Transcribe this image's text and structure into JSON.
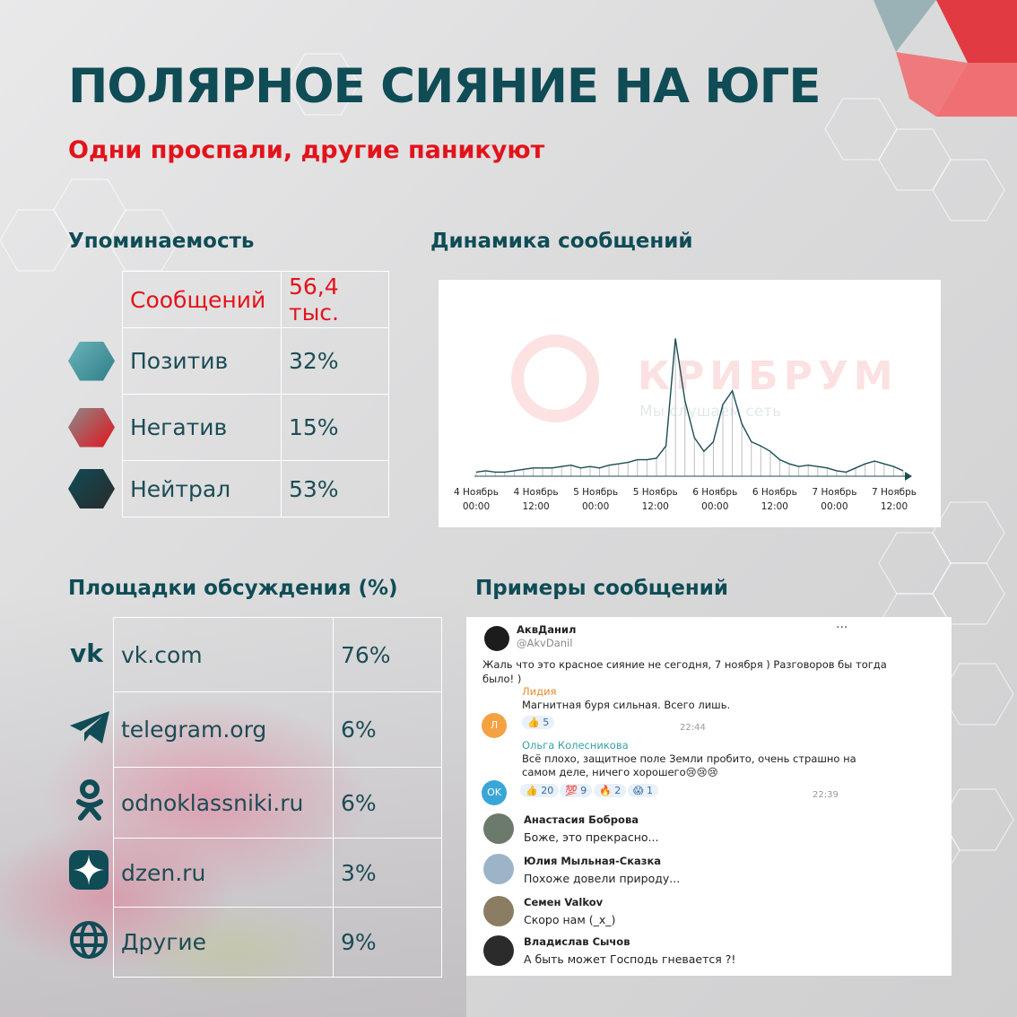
{
  "header": {
    "title": "ПОЛЯРНОЕ СИЯНИЕ НА ЮГЕ",
    "subtitle": "Одни проспали, другие паникуют"
  },
  "sections": {
    "mentions": "Упоминаемость",
    "dynamics": "Динамика сообщений",
    "platforms": "Площадки обсуждения (%)",
    "examples": "Примеры сообщений"
  },
  "mentions": {
    "messages_label": "Сообщений",
    "messages_value": "56,4 тыс.",
    "rows": [
      {
        "label": "Позитив",
        "value": "32%",
        "color_from": "#5aa7ae",
        "color_to": "#2f7d88"
      },
      {
        "label": "Негатив",
        "value": "15%",
        "color_from": "#8a8a8a",
        "color_to": "#e3131b"
      },
      {
        "label": "Нейтрал",
        "value": "53%",
        "color_from": "#0f4c56",
        "color_to": "#2a2a2a"
      }
    ]
  },
  "platforms": [
    {
      "label": "vk.com",
      "value": "76%",
      "icon": "vk-icon"
    },
    {
      "label": "telegram.org",
      "value": "6%",
      "icon": "telegram-icon"
    },
    {
      "label": "odnoklassniki.ru",
      "value": "6%",
      "icon": "odnoklassniki-icon"
    },
    {
      "label": "dzen.ru",
      "value": "3%",
      "icon": "dzen-icon"
    },
    {
      "label": "Другие",
      "value": "9%",
      "icon": "globe-icon"
    }
  ],
  "chart_data": {
    "type": "area",
    "title": "",
    "x_ticks": [
      [
        "4 Ноябрь",
        "00:00"
      ],
      [
        "4 Ноябрь",
        "12:00"
      ],
      [
        "5 Ноябрь",
        "00:00"
      ],
      [
        "5 Ноябрь",
        "12:00"
      ],
      [
        "6 Ноябрь",
        "00:00"
      ],
      [
        "6 Ноябрь",
        "12:00"
      ],
      [
        "7 Ноябрь",
        "00:00"
      ],
      [
        "7 Ноябрь",
        "12:00"
      ]
    ],
    "x_hours": [
      0,
      2,
      4,
      6,
      8,
      10,
      12,
      14,
      16,
      18,
      20,
      22,
      24,
      26,
      28,
      30,
      32,
      34,
      36,
      38,
      40,
      42,
      44,
      46,
      48,
      50,
      52,
      54,
      56,
      58,
      60,
      62,
      64,
      66,
      68,
      70,
      72,
      74,
      76,
      78,
      80,
      82,
      84,
      86,
      88,
      90
    ],
    "values": [
      3,
      4,
      3,
      3,
      4,
      5,
      6,
      6,
      6,
      7,
      8,
      6,
      7,
      6,
      8,
      9,
      10,
      12,
      12,
      13,
      22,
      100,
      55,
      28,
      18,
      25,
      52,
      62,
      38,
      25,
      22,
      18,
      12,
      9,
      7,
      8,
      7,
      6,
      4,
      3,
      6,
      9,
      11,
      9,
      7,
      4
    ],
    "ylim": [
      0,
      110
    ],
    "line_color": "#1c4c55",
    "bar_color": "#bfbfbf",
    "grid": false,
    "watermark": "КРИБРУМ",
    "watermark_sub": "Мы слушаем сеть"
  },
  "post": {
    "author": "АквДанил",
    "handle": "@AkvDanil",
    "text_line1": "Жаль что это красное сияние не сегодня, 7 ноября ) Разговоров бы тогда",
    "text_line2": "было! )",
    "more": "···"
  },
  "replies": [
    {
      "name": "Лидия",
      "initial": "Л",
      "text": "Магнитная буря сильная. Всего лишь.",
      "reactions": [
        "👍 5"
      ],
      "time": "22:44"
    },
    {
      "name": "Ольга Колесникова",
      "initial": "OK",
      "text1": "Всё плохо, защитное поле Земли пробито, очень страшно на",
      "text2": "самом деле, ничего хорошего😢😢😢",
      "reactions": [
        "👍 20",
        "💯 9",
        "🔥 2",
        "😱 1"
      ],
      "time": "22:39"
    }
  ],
  "comments": [
    {
      "name": "Анастасия Боброва",
      "text": "Боже, это прекрасно..."
    },
    {
      "name": "Юлия Мыльная-Сказка",
      "text": "Похоже довели природу..."
    },
    {
      "name": "Семен Valkov",
      "text": "Скоро нам (_x_)"
    },
    {
      "name": "Владислав Сычов",
      "text": "А быть может Господь гневается ?!"
    }
  ]
}
